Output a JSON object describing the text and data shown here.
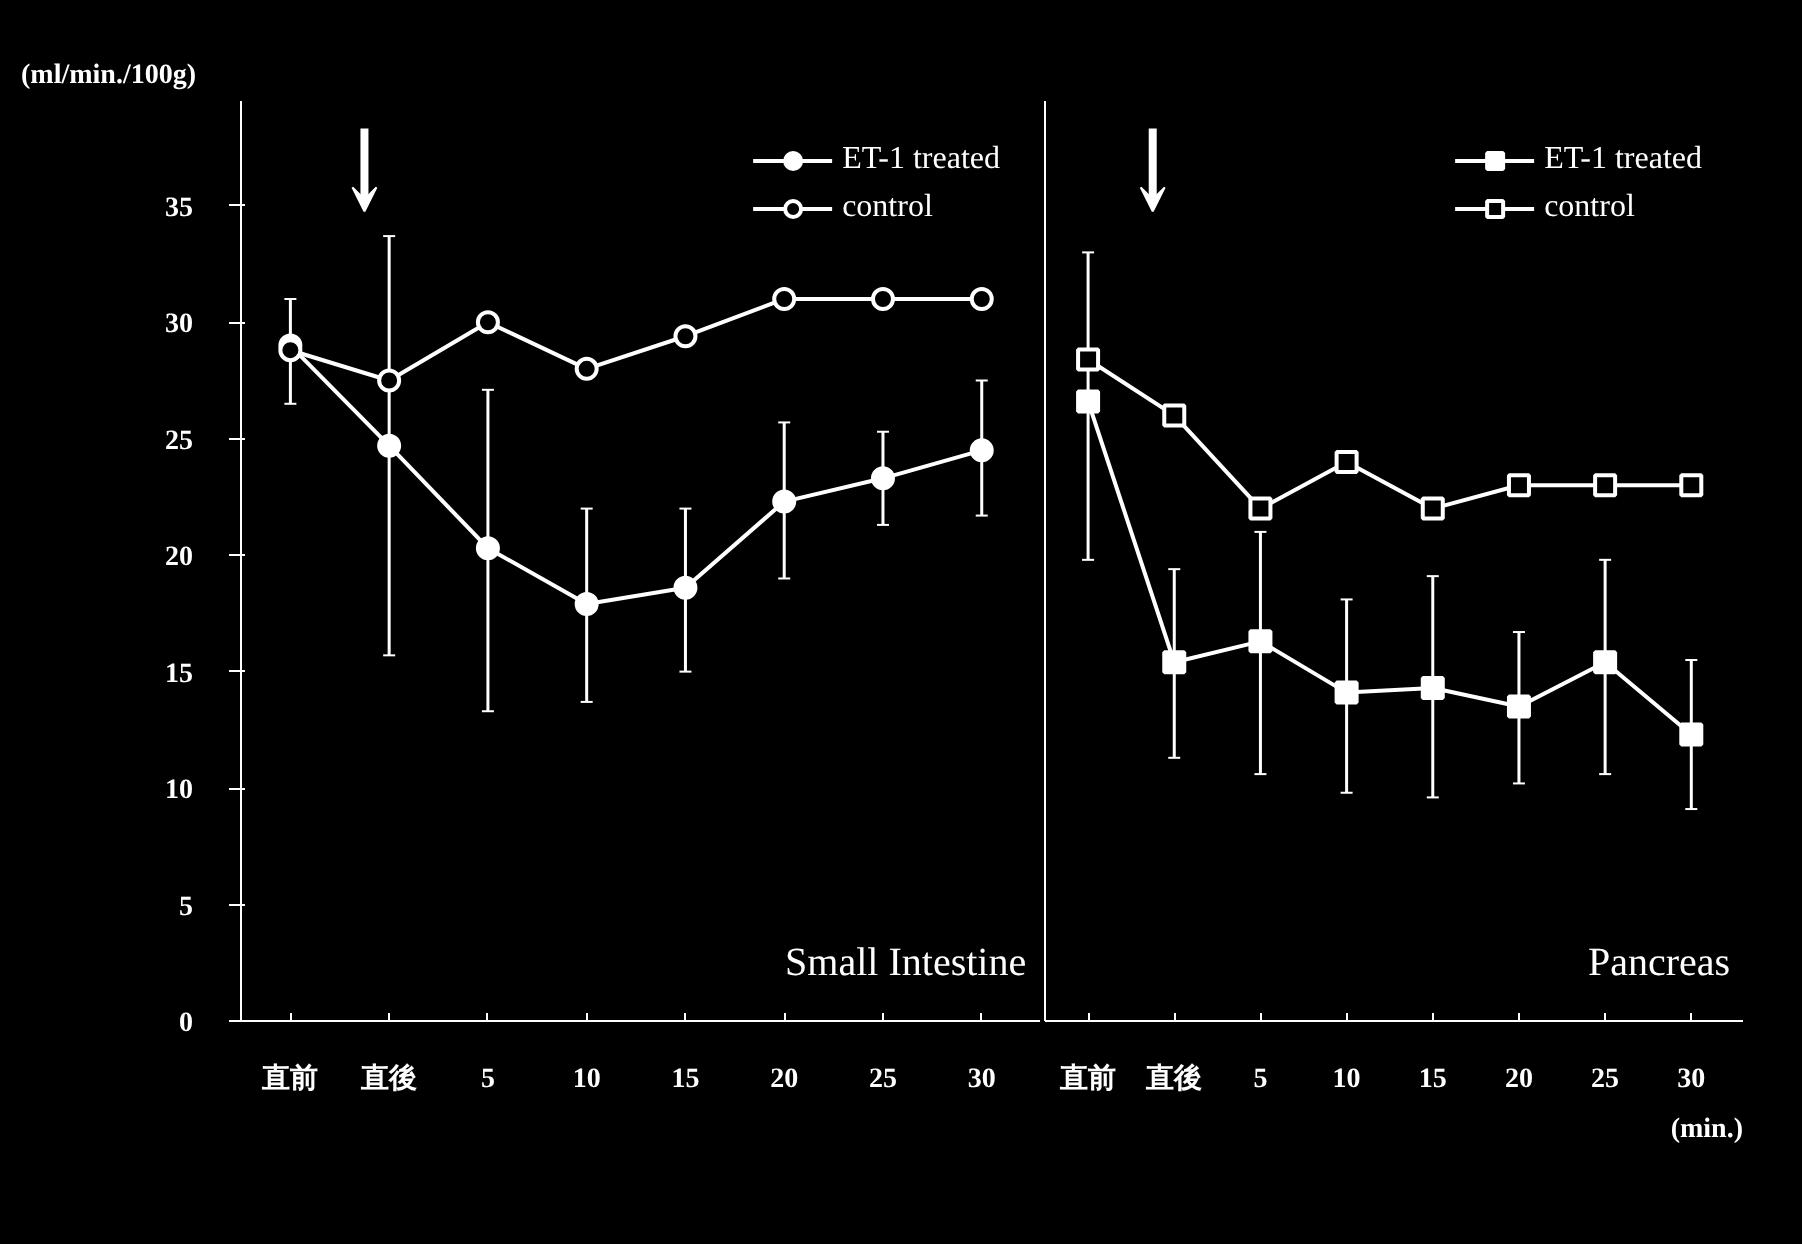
{
  "chart_data": [
    {
      "type": "line",
      "title": "Small Intestine",
      "ylabel": "(ml/min./100g)",
      "categories": [
        "直前",
        "直後",
        "5",
        "10",
        "15",
        "20",
        "25",
        "30"
      ],
      "ylim": [
        0,
        39.5
      ],
      "yticks": [
        0,
        5,
        10,
        15,
        20,
        25,
        30,
        35
      ],
      "grid": false,
      "legend": "top right",
      "line_style": "solid",
      "series": [
        {
          "name": "ET-1 treated",
          "color": "#ffffff",
          "marker": "circle",
          "values": [
            29,
            24.7,
            20.3,
            17.9,
            18.6,
            22.3,
            23.3,
            24.5
          ],
          "errors": [
            [
              26.5,
              31
            ],
            [
              15.7,
              33.7
            ],
            [
              13.3,
              27.1
            ],
            [
              13.7,
              22
            ],
            [
              15,
              22
            ],
            [
              19,
              25.7
            ],
            [
              21.3,
              25.3
            ],
            [
              21.7,
              27.5
            ]
          ]
        },
        {
          "name": "control",
          "color": "#ffffff",
          "marker": "circle",
          "values": [
            28.8,
            27.5,
            30,
            28,
            29.4,
            31,
            31,
            31
          ]
        }
      ]
    },
    {
      "type": "line",
      "title": "Pancreas",
      "categories": [
        "直前",
        "直後",
        "5",
        "10",
        "15",
        "20",
        "25",
        "30"
      ],
      "ylim": [
        0,
        39.5
      ],
      "tick_labels": "x",
      "grid": false,
      "legend": "top right",
      "line_style": "solid",
      "annotations": [
        "(min.)"
      ],
      "series": [
        {
          "name": "ET-1 treated",
          "color": "#ffffff",
          "marker": "square",
          "values": [
            26.6,
            15.4,
            16.3,
            14.1,
            14.3,
            13.5,
            15.4,
            12.3
          ],
          "errors": [
            [
              19.8,
              33
            ],
            [
              11.3,
              19.4
            ],
            [
              10.6,
              21
            ],
            [
              9.8,
              18.1
            ],
            [
              9.6,
              19.1
            ],
            [
              10.2,
              16.7
            ],
            [
              10.6,
              19.8
            ],
            [
              9.1,
              15.5
            ]
          ]
        },
        {
          "name": "control",
          "color": "#ffffff",
          "marker": "square",
          "values": [
            28.4,
            26,
            22,
            24,
            22,
            23,
            23,
            23
          ]
        }
      ]
    }
  ]
}
